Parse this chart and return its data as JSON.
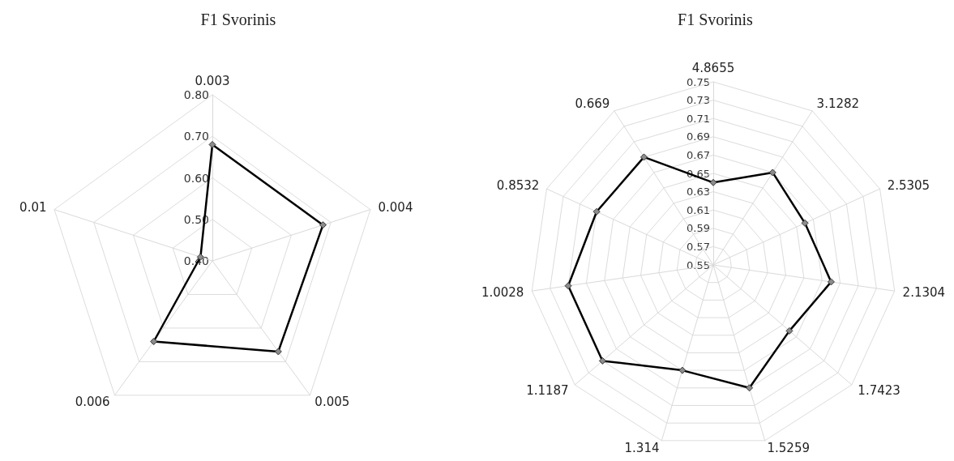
{
  "chart_data": [
    {
      "type": "radar",
      "title": "F1 Svorinis",
      "categories": [
        "0.003",
        "0.004",
        "0.005",
        "0.006",
        "0.01"
      ],
      "series": [
        {
          "color": "#000000",
          "values": [
            0.68,
            0.68,
            0.67,
            0.64,
            0.43
          ]
        }
      ],
      "ylim": [
        0.4,
        0.8
      ],
      "yticks": [
        {
          "value": 0.4,
          "label": "0.40"
        },
        {
          "value": 0.5,
          "label": "0.50"
        },
        {
          "value": 0.6,
          "label": "0.60"
        },
        {
          "value": 0.7,
          "label": "0.70"
        },
        {
          "value": 0.8,
          "label": "0.80"
        }
      ],
      "marker": "diamond",
      "grid": true
    },
    {
      "type": "radar",
      "title": "F1 Svorinis",
      "categories": [
        "4.8655",
        "3.1282",
        "2.5305",
        "2.1304",
        "1.7423",
        "1.5259",
        "1.314",
        "1.1187",
        "1.0028",
        "0.8532",
        "0.669"
      ],
      "series": [
        {
          "color": "#000000",
          "values": [
            0.64,
            0.67,
            0.66,
            0.68,
            0.66,
            0.69,
            0.67,
            0.71,
            0.71,
            0.69,
            0.69
          ]
        }
      ],
      "ylim": [
        0.55,
        0.75
      ],
      "yticks": [
        0.55,
        0.57,
        0.59,
        0.61,
        0.63,
        0.65,
        0.67,
        0.69,
        0.71,
        0.73,
        0.75
      ],
      "marker": "diamond",
      "grid": true
    }
  ]
}
